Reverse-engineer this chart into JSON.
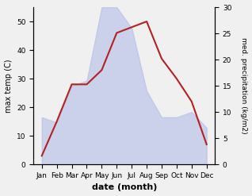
{
  "months": [
    "Jan",
    "Feb",
    "Mar",
    "Apr",
    "May",
    "Jun",
    "Jul",
    "Aug",
    "Sep",
    "Oct",
    "Nov",
    "Dec"
  ],
  "temp_max": [
    3,
    15,
    28,
    28,
    33,
    46,
    48,
    50,
    37,
    30,
    22,
    7
  ],
  "precipitation": [
    9,
    8,
    15,
    16,
    30,
    30,
    26,
    14,
    9,
    9,
    10,
    7
  ],
  "temp_color": "#b22222",
  "precip_color_fill": "#b0b8e8",
  "precip_color_fill_alpha": 0.55,
  "xlabel": "date (month)",
  "ylabel_left": "max temp (C)",
  "ylabel_right": "med. precipitation (kg/m2)",
  "ylim_left": [
    0,
    55
  ],
  "ylim_right": [
    0,
    30
  ],
  "yticks_left": [
    0,
    10,
    20,
    30,
    40,
    50
  ],
  "yticks_right": [
    0,
    5,
    10,
    15,
    20,
    25,
    30
  ],
  "bgcolor": "#f0f0f0"
}
